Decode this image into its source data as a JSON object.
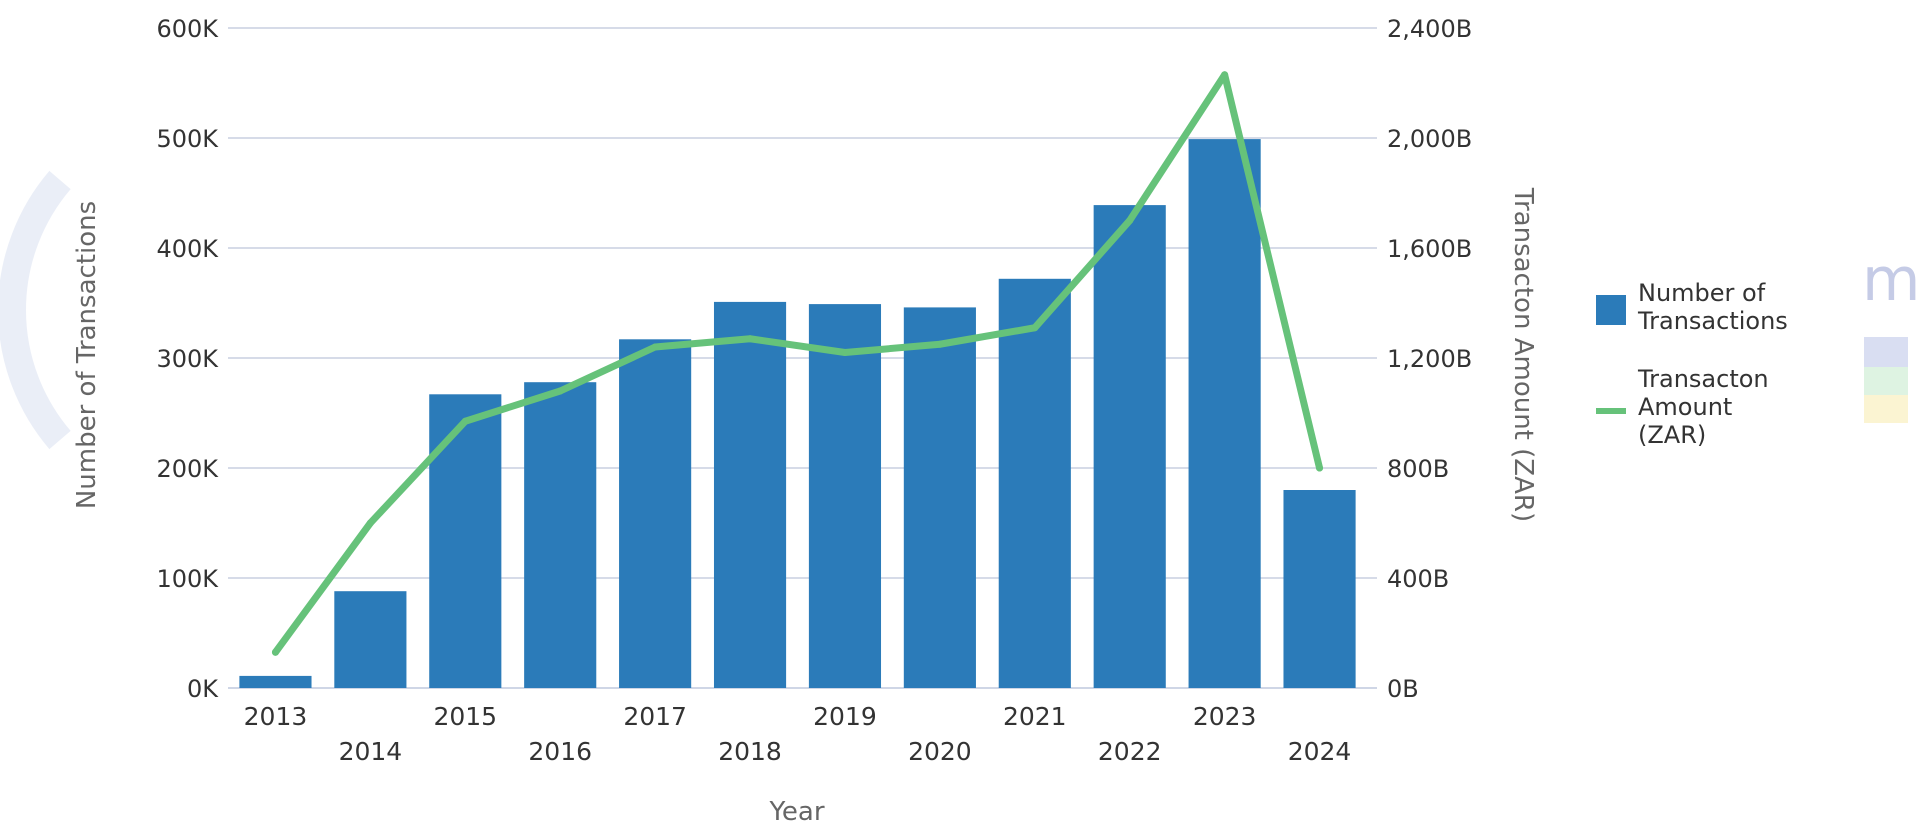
{
  "chart_data": {
    "type": "bar",
    "title": "",
    "xlabel": "Year",
    "ylabel": "Number of Transactions",
    "y2label": "Transacton Amount (ZAR)",
    "categories": [
      "2013",
      "2014",
      "2015",
      "2016",
      "2017",
      "2018",
      "2019",
      "2020",
      "2021",
      "2022",
      "2023",
      "2024"
    ],
    "series": [
      {
        "name": "Number of Transactions",
        "type": "bar",
        "axis": "left",
        "color": "#2b7bb9",
        "values": [
          11000,
          88000,
          267000,
          278000,
          317000,
          351000,
          349000,
          346000,
          372000,
          439000,
          499000,
          180000
        ]
      },
      {
        "name": "Transacton Amount (ZAR)",
        "type": "line",
        "axis": "right",
        "color": "#66c27a",
        "values": [
          130,
          600,
          970,
          1080,
          1240,
          1270,
          1220,
          1250,
          1310,
          1700,
          2230,
          800
        ]
      }
    ],
    "ylim": [
      0,
      600000
    ],
    "y2lim": [
      0,
      2400
    ],
    "y_ticks": [
      "0K",
      "100K",
      "200K",
      "300K",
      "400K",
      "500K",
      "600K"
    ],
    "y2_ticks": [
      "0B",
      "400B",
      "800B",
      "1,200B",
      "1,600B",
      "2,000B",
      "2,400B"
    ],
    "y2_unit": "B",
    "grid": true,
    "legend": {
      "position": "right",
      "items": [
        {
          "label_line1": "Number of",
          "label_line2": "Transactions",
          "label_line3": "",
          "kind": "bar",
          "color": "#2b7bb9"
        },
        {
          "label_line1": "Transacton",
          "label_line2": "Amount",
          "label_line3": "(ZAR)",
          "kind": "line",
          "color": "#66c27a"
        }
      ]
    }
  }
}
